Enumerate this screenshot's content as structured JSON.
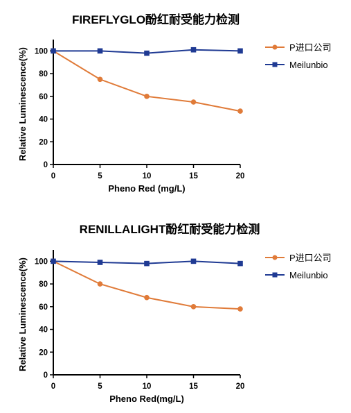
{
  "chart_data": [
    {
      "type": "line",
      "title": "FIREFLYGLO酚红耐受能力检测",
      "xlabel": "Pheno Red (mg/L)",
      "ylabel": "Relative Luminescence(%)",
      "x": [
        0,
        5,
        10,
        15,
        20
      ],
      "xlim": [
        0,
        20
      ],
      "ylim": [
        0,
        110
      ],
      "yticks": [
        0,
        20,
        40,
        60,
        80,
        100
      ],
      "grid": false,
      "legend_position": "top-right",
      "series": [
        {
          "name": "P进口公司",
          "values": [
            100,
            75,
            60,
            55,
            47
          ],
          "color": "#E07B39",
          "marker": "circle"
        },
        {
          "name": "Meilunbio",
          "values": [
            100,
            100,
            98,
            101,
            100
          ],
          "color": "#1F3A93",
          "marker": "square"
        }
      ]
    },
    {
      "type": "line",
      "title": "RENILLALIGHT酚红耐受能力检测",
      "xlabel": "Pheno Red(mg/L)",
      "ylabel": "Relative Luminescence(%)",
      "x": [
        0,
        5,
        10,
        15,
        20
      ],
      "xlim": [
        0,
        20
      ],
      "ylim": [
        0,
        110
      ],
      "yticks": [
        0,
        20,
        40,
        60,
        80,
        100
      ],
      "grid": false,
      "legend_position": "top-right",
      "series": [
        {
          "name": "P进口公司",
          "values": [
            100,
            80,
            68,
            60,
            58
          ],
          "color": "#E07B39",
          "marker": "circle"
        },
        {
          "name": "Meilunbio",
          "values": [
            100,
            99,
            98,
            100,
            98
          ],
          "color": "#1F3A93",
          "marker": "square"
        }
      ]
    }
  ]
}
